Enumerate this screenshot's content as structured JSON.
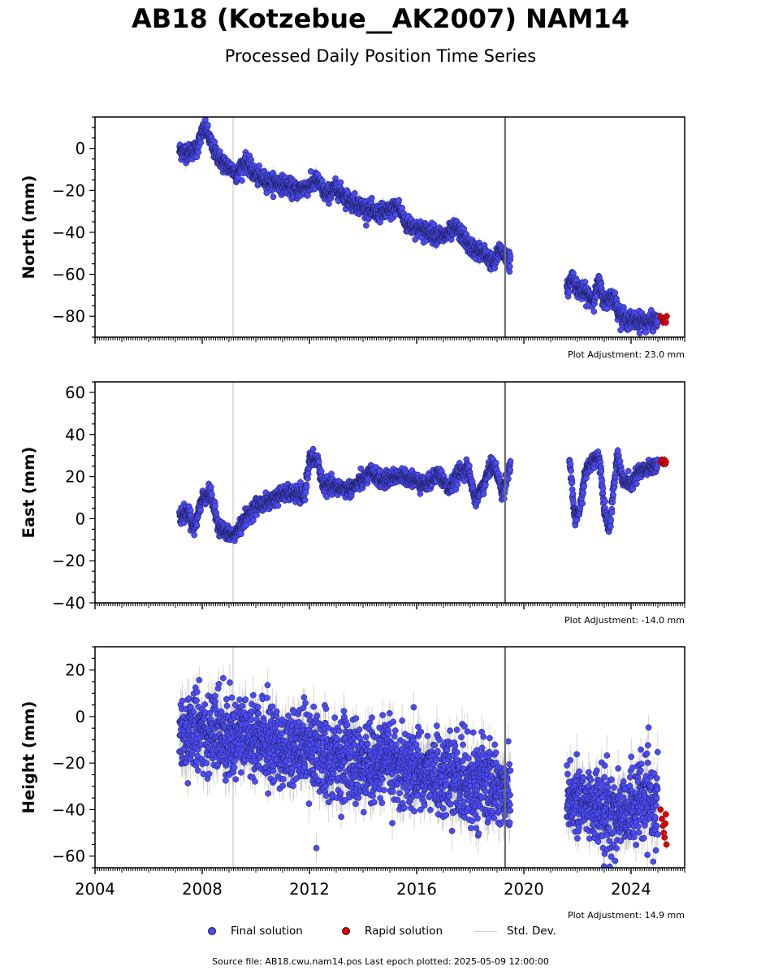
{
  "header": {
    "title": "AB18 (Kotzebue__AK2007) NAM14",
    "subtitle": "Processed Daily Position Time Series"
  },
  "legend": {
    "final": "Final solution",
    "rapid": "Rapid solution",
    "stddev": "Std. Dev."
  },
  "footer": "Source file: AB18.cwu.nam14.pos  Last epoch plotted: 2025-05-09 12:00:00",
  "colors": {
    "final": "#4b4bf5",
    "rapid": "#e00000",
    "stddev": "#b4b4b4",
    "event_line": "#6e6e6e",
    "light_line": "#d6d6d6"
  },
  "chart_data": [
    {
      "type": "scatter",
      "ylabel": "North (mm)",
      "ylim": [
        -90,
        15
      ],
      "yticks": [
        0,
        -20,
        -40,
        -60,
        -80
      ],
      "xlim": [
        2004,
        2026
      ],
      "xticks": [
        2004,
        2008,
        2012,
        2016,
        2020,
        2024
      ],
      "show_xticklabels": false,
      "adjustment": "Plot Adjustment: 23.0 mm",
      "noise": 2.0,
      "err": 2.0,
      "final_segments": [
        [
          [
            2007.15,
            -1
          ],
          [
            2007.5,
            -2
          ],
          [
            2007.8,
            0
          ],
          [
            2008.0,
            8
          ],
          [
            2008.15,
            9
          ],
          [
            2008.4,
            0
          ],
          [
            2008.7,
            -6
          ],
          [
            2009.0,
            -9
          ],
          [
            2009.3,
            -12
          ],
          [
            2009.6,
            -6
          ],
          [
            2010.0,
            -13
          ],
          [
            2010.5,
            -16
          ],
          [
            2011.0,
            -17
          ],
          [
            2011.5,
            -20
          ],
          [
            2012.0,
            -18
          ],
          [
            2012.3,
            -15
          ],
          [
            2012.6,
            -22
          ],
          [
            2013.0,
            -19
          ],
          [
            2013.5,
            -25
          ],
          [
            2014.0,
            -28
          ],
          [
            2014.5,
            -31
          ],
          [
            2015.0,
            -30
          ],
          [
            2015.3,
            -27
          ],
          [
            2015.6,
            -36
          ],
          [
            2016.0,
            -38
          ],
          [
            2016.5,
            -40
          ],
          [
            2017.0,
            -42
          ],
          [
            2017.5,
            -38
          ],
          [
            2018.0,
            -47
          ],
          [
            2018.5,
            -50
          ],
          [
            2018.9,
            -55
          ],
          [
            2019.1,
            -48
          ],
          [
            2019.5,
            -54
          ]
        ],
        [
          [
            2021.6,
            -68
          ],
          [
            2021.8,
            -61
          ],
          [
            2022.0,
            -67
          ],
          [
            2022.3,
            -69
          ],
          [
            2022.6,
            -72
          ],
          [
            2022.8,
            -64
          ],
          [
            2023.0,
            -73
          ],
          [
            2023.3,
            -70
          ],
          [
            2023.6,
            -79
          ],
          [
            2023.8,
            -82
          ],
          [
            2024.2,
            -82
          ],
          [
            2024.6,
            -83
          ],
          [
            2025.0,
            -82
          ]
        ]
      ],
      "rapid": [
        [
          2025.1,
          -80
        ],
        [
          2025.15,
          -81
        ],
        [
          2025.2,
          -83
        ],
        [
          2025.22,
          -82
        ],
        [
          2025.25,
          -81
        ],
        [
          2025.28,
          -82
        ],
        [
          2025.3,
          -83
        ],
        [
          2025.33,
          -80
        ]
      ],
      "event_lines": [
        2019.3
      ],
      "light_lines": [
        2009.15
      ]
    },
    {
      "type": "scatter",
      "ylabel": "East (mm)",
      "ylim": [
        -40,
        65
      ],
      "yticks": [
        60,
        40,
        20,
        0,
        -20,
        -40
      ],
      "xlim": [
        2004,
        2026
      ],
      "xticks": [
        2004,
        2008,
        2012,
        2016,
        2020,
        2024
      ],
      "show_xticklabels": false,
      "adjustment": "Plot Adjustment: -14.0 mm",
      "noise": 1.8,
      "err": 1.6,
      "final_segments": [
        [
          [
            2007.15,
            1
          ],
          [
            2007.5,
            3
          ],
          [
            2007.7,
            -5
          ],
          [
            2008.0,
            10
          ],
          [
            2008.3,
            12
          ],
          [
            2008.6,
            -3
          ],
          [
            2008.9,
            -7
          ],
          [
            2009.2,
            -8
          ],
          [
            2009.6,
            0
          ],
          [
            2010.0,
            6
          ],
          [
            2010.5,
            8
          ],
          [
            2011.0,
            12
          ],
          [
            2011.5,
            12
          ],
          [
            2011.8,
            10
          ],
          [
            2012.0,
            28
          ],
          [
            2012.3,
            28
          ],
          [
            2012.5,
            16
          ],
          [
            2013.0,
            15
          ],
          [
            2013.5,
            14
          ],
          [
            2014.0,
            18
          ],
          [
            2014.3,
            22
          ],
          [
            2014.7,
            18
          ],
          [
            2015.2,
            20
          ],
          [
            2015.6,
            20
          ],
          [
            2016.0,
            18
          ],
          [
            2016.4,
            16
          ],
          [
            2016.8,
            22
          ],
          [
            2017.2,
            14
          ],
          [
            2017.6,
            22
          ],
          [
            2017.9,
            24
          ],
          [
            2018.2,
            9
          ],
          [
            2018.5,
            16
          ],
          [
            2018.8,
            26
          ],
          [
            2019.0,
            22
          ],
          [
            2019.2,
            12
          ],
          [
            2019.5,
            26
          ]
        ],
        [
          [
            2021.7,
            28
          ],
          [
            2021.9,
            0
          ],
          [
            2022.1,
            5
          ],
          [
            2022.3,
            22
          ],
          [
            2022.6,
            28
          ],
          [
            2022.8,
            30
          ],
          [
            2022.9,
            20
          ],
          [
            2023.0,
            5
          ],
          [
            2023.2,
            -5
          ],
          [
            2023.4,
            20
          ],
          [
            2023.5,
            30
          ],
          [
            2023.7,
            18
          ],
          [
            2024.0,
            16
          ],
          [
            2024.3,
            22
          ],
          [
            2024.7,
            24
          ],
          [
            2025.0,
            26
          ]
        ]
      ],
      "rapid": [
        [
          2025.1,
          27
        ],
        [
          2025.15,
          28
        ],
        [
          2025.2,
          26
        ],
        [
          2025.22,
          27
        ],
        [
          2025.25,
          28
        ],
        [
          2025.28,
          26
        ],
        [
          2025.3,
          27
        ]
      ],
      "event_lines": [
        2019.3
      ],
      "light_lines": [
        2009.15
      ]
    },
    {
      "type": "scatter",
      "ylabel": "Height (mm)",
      "ylim": [
        -65,
        30
      ],
      "yticks": [
        20,
        0,
        -20,
        -40,
        -60
      ],
      "xlim": [
        2004,
        2026
      ],
      "xticks": [
        2004,
        2008,
        2012,
        2016,
        2020,
        2024
      ],
      "show_xticklabels": true,
      "adjustment": "Plot Adjustment: 14.9 mm",
      "noise": 8.5,
      "err": 6.0,
      "final_segments": [
        [
          [
            2007.15,
            -8
          ],
          [
            2008.0,
            -5
          ],
          [
            2009.0,
            -8
          ],
          [
            2010.0,
            -10
          ],
          [
            2011.0,
            -13
          ],
          [
            2012.0,
            -15
          ],
          [
            2013.0,
            -18
          ],
          [
            2014.0,
            -20
          ],
          [
            2015.0,
            -20
          ],
          [
            2016.0,
            -23
          ],
          [
            2017.0,
            -26
          ],
          [
            2018.0,
            -28
          ],
          [
            2019.0,
            -30
          ],
          [
            2019.5,
            -33
          ]
        ],
        [
          [
            2021.6,
            -32
          ],
          [
            2022.0,
            -38
          ],
          [
            2022.5,
            -36
          ],
          [
            2023.0,
            -42
          ],
          [
            2023.5,
            -42
          ],
          [
            2024.0,
            -38
          ],
          [
            2024.5,
            -36
          ],
          [
            2025.0,
            -40
          ]
        ]
      ],
      "rapid": [
        [
          2025.1,
          -40
        ],
        [
          2025.15,
          -44
        ],
        [
          2025.2,
          -47
        ],
        [
          2025.22,
          -50
        ],
        [
          2025.25,
          -52
        ],
        [
          2025.28,
          -46
        ],
        [
          2025.3,
          -42
        ],
        [
          2025.32,
          -55
        ]
      ],
      "event_lines": [
        2019.3
      ],
      "light_lines": [
        2009.15
      ]
    }
  ]
}
